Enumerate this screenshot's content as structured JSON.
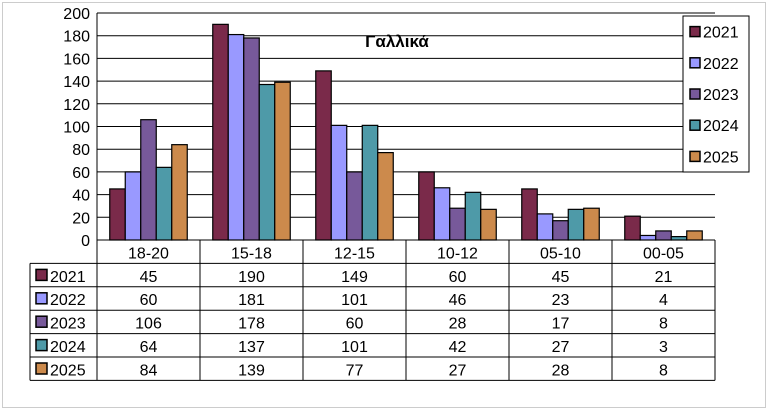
{
  "chart_data": {
    "type": "bar",
    "title": "Γαλλικά",
    "xlabel": "",
    "ylabel": "",
    "ylim": [
      0,
      200
    ],
    "ytick_step": 20,
    "grid": true,
    "legend": "top-right",
    "data_table": true,
    "categories": [
      "18-20",
      "15-18",
      "12-15",
      "10-12",
      "05-10",
      "00-05"
    ],
    "series": [
      {
        "name": "2021",
        "color": "#7a2a4a",
        "values": [
          45,
          190,
          149,
          60,
          45,
          21
        ]
      },
      {
        "name": "2022",
        "color": "#9999ff",
        "values": [
          60,
          181,
          101,
          46,
          23,
          4
        ]
      },
      {
        "name": "2023",
        "color": "#77599a",
        "values": [
          106,
          178,
          60,
          28,
          17,
          8
        ]
      },
      {
        "name": "2024",
        "color": "#4e9aa8",
        "values": [
          64,
          137,
          101,
          42,
          27,
          3
        ]
      },
      {
        "name": "2025",
        "color": "#cc8a4c",
        "values": [
          84,
          139,
          77,
          27,
          28,
          8
        ]
      }
    ]
  }
}
